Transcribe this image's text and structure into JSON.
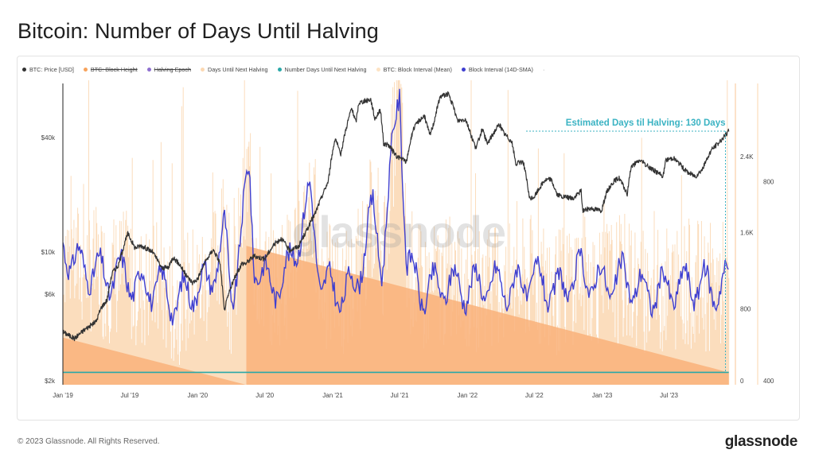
{
  "page": {
    "title": "Bitcoin: Number of Days Until Halving",
    "footer_copyright": "© 2023 Glassnode. All Rights Reserved.",
    "footer_brand": "glassnode",
    "watermark": "glassnode"
  },
  "legend": [
    {
      "label": "BTC: Price [USD]",
      "color": "#333333",
      "struck": false
    },
    {
      "label": "BTC: Block Height",
      "color": "#f7a35c",
      "struck": true
    },
    {
      "label": "Halving Epoch",
      "color": "#8e6fd0",
      "struck": true
    },
    {
      "label": "Days Until Next Halving",
      "color": "#fcd9b3",
      "struck": false
    },
    {
      "label": "Number Days Until Next Halving",
      "color": "#2aa8a8",
      "struck": false
    },
    {
      "label": "BTC: Block Interval (Mean)",
      "color": "#fde3c4",
      "struck": false
    },
    {
      "label": "Block Interval (14D-SMA)",
      "color": "#3f3fd0",
      "struck": false
    }
  ],
  "legend_more": "·",
  "chart_data": {
    "type": "line",
    "title": "Bitcoin: Number of Days Until Halving",
    "annotation": "Estimated Days til Halving: 130 Days",
    "x_ticks": [
      "Jan '19",
      "Jul '19",
      "Jan '20",
      "Jul '20",
      "Jan '21",
      "Jul '21",
      "Jan '22",
      "Jul '22",
      "Jan '23",
      "Jul '23"
    ],
    "x_range": [
      "2019-01-01",
      "2023-12-15"
    ],
    "halving_date": "2020-05-11",
    "y_axes": {
      "price": {
        "scale": "log",
        "ticks": [
          "$2k",
          "$6k",
          "$10k",
          "$40k"
        ],
        "tick_values": [
          2000,
          6000,
          10000,
          40000
        ],
        "range": [
          2000,
          80000
        ]
      },
      "days": {
        "scale": "linear",
        "ticks": [
          "0",
          "800",
          "1.6K",
          "2.4K"
        ],
        "tick_values": [
          0,
          800,
          1600,
          2400
        ],
        "range": [
          0,
          3200
        ]
      },
      "block_interval": {
        "scale": "linear",
        "ticks": [
          "400",
          "800"
        ],
        "tick_values": [
          400,
          800
        ],
        "range": [
          400,
          1000
        ]
      }
    },
    "series": [
      {
        "name": "BTC: Price [USD]",
        "color": "#333333",
        "points": [
          [
            "2019-01-01",
            3800
          ],
          [
            "2019-02-01",
            3500
          ],
          [
            "2019-03-01",
            3900
          ],
          [
            "2019-04-01",
            4300
          ],
          [
            "2019-04-15",
            5100
          ],
          [
            "2019-05-01",
            5600
          ],
          [
            "2019-05-15",
            7800
          ],
          [
            "2019-06-01",
            8500
          ],
          [
            "2019-06-26",
            12500
          ],
          [
            "2019-07-15",
            10500
          ],
          [
            "2019-08-01",
            10800
          ],
          [
            "2019-09-01",
            10000
          ],
          [
            "2019-09-26",
            8200
          ],
          [
            "2019-10-15",
            8300
          ],
          [
            "2019-10-26",
            9400
          ],
          [
            "2019-11-15",
            8500
          ],
          [
            "2019-12-01",
            7500
          ],
          [
            "2019-12-18",
            6900
          ],
          [
            "2020-01-01",
            7200
          ],
          [
            "2020-01-20",
            8700
          ],
          [
            "2020-02-12",
            10300
          ],
          [
            "2020-03-01",
            8800
          ],
          [
            "2020-03-13",
            4900
          ],
          [
            "2020-04-01",
            6600
          ],
          [
            "2020-04-30",
            8700
          ],
          [
            "2020-05-11",
            8700
          ],
          [
            "2020-06-01",
            9500
          ],
          [
            "2020-07-01",
            9200
          ],
          [
            "2020-07-27",
            11000
          ],
          [
            "2020-08-15",
            11800
          ],
          [
            "2020-09-05",
            10200
          ],
          [
            "2020-10-01",
            10700
          ],
          [
            "2020-10-21",
            12800
          ],
          [
            "2020-11-15",
            16000
          ],
          [
            "2020-12-01",
            19200
          ],
          [
            "2020-12-20",
            23500
          ],
          [
            "2021-01-08",
            40000
          ],
          [
            "2021-01-22",
            32000
          ],
          [
            "2021-02-08",
            46000
          ],
          [
            "2021-02-21",
            57000
          ],
          [
            "2021-03-05",
            48000
          ],
          [
            "2021-03-13",
            61000
          ],
          [
            "2021-04-14",
            63500
          ],
          [
            "2021-04-25",
            50000
          ],
          [
            "2021-05-10",
            56000
          ],
          [
            "2021-05-19",
            37000
          ],
          [
            "2021-06-01",
            36500
          ],
          [
            "2021-06-22",
            32000
          ],
          [
            "2021-07-20",
            29800
          ],
          [
            "2021-08-07",
            44000
          ],
          [
            "2021-08-22",
            49000
          ],
          [
            "2021-09-06",
            52000
          ],
          [
            "2021-09-21",
            41000
          ],
          [
            "2021-10-01",
            47000
          ],
          [
            "2021-10-20",
            66000
          ],
          [
            "2021-11-10",
            68000
          ],
          [
            "2021-11-25",
            57000
          ],
          [
            "2021-12-05",
            49000
          ],
          [
            "2021-12-27",
            50000
          ],
          [
            "2022-01-10",
            41500
          ],
          [
            "2022-01-24",
            35000
          ],
          [
            "2022-02-10",
            44000
          ],
          [
            "2022-02-24",
            37000
          ],
          [
            "2022-03-28",
            47000
          ],
          [
            "2022-04-10",
            42000
          ],
          [
            "2022-05-01",
            38000
          ],
          [
            "2022-05-12",
            29000
          ],
          [
            "2022-06-01",
            30000
          ],
          [
            "2022-06-18",
            19000
          ],
          [
            "2022-07-01",
            19500
          ],
          [
            "2022-07-29",
            23800
          ],
          [
            "2022-08-15",
            24200
          ],
          [
            "2022-09-01",
            20000
          ],
          [
            "2022-09-15",
            19500
          ],
          [
            "2022-10-15",
            19100
          ],
          [
            "2022-11-05",
            21000
          ],
          [
            "2022-11-09",
            16500
          ],
          [
            "2022-12-01",
            17000
          ],
          [
            "2022-12-30",
            16500
          ],
          [
            "2023-01-14",
            20800
          ],
          [
            "2023-02-01",
            23500
          ],
          [
            "2023-02-16",
            24500
          ],
          [
            "2023-03-10",
            20000
          ],
          [
            "2023-03-20",
            28000
          ],
          [
            "2023-04-14",
            30400
          ],
          [
            "2023-05-01",
            28500
          ],
          [
            "2023-06-15",
            25000
          ],
          [
            "2023-06-23",
            30500
          ],
          [
            "2023-07-13",
            31300
          ],
          [
            "2023-08-17",
            26500
          ],
          [
            "2023-09-11",
            25000
          ],
          [
            "2023-10-01",
            27500
          ],
          [
            "2023-10-24",
            34500
          ],
          [
            "2023-11-10",
            37000
          ],
          [
            "2023-12-05",
            42000
          ],
          [
            "2023-12-10",
            43500
          ]
        ]
      },
      {
        "name": "Days Until Next Halving",
        "color": "#fab276",
        "points": [
          [
            "2019-01-01",
            496
          ],
          [
            "2020-05-11",
            0
          ],
          [
            "2020-05-12",
            1460
          ],
          [
            "2023-12-10",
            130
          ]
        ]
      },
      {
        "name": "Number Days Until Next Halving",
        "color": "#2aa8a8",
        "points": [
          [
            "2019-01-01",
            130
          ],
          [
            "2023-12-10",
            130
          ]
        ]
      },
      {
        "name": "Block Interval (14D-SMA)",
        "color": "#3f3fd0",
        "points": [
          [
            "2019-01-01",
            680
          ],
          [
            "2019-02-01",
            640
          ],
          [
            "2019-03-15",
            630
          ],
          [
            "2019-05-01",
            610
          ],
          [
            "2019-06-15",
            620
          ],
          [
            "2019-08-01",
            590
          ],
          [
            "2019-09-15",
            600
          ],
          [
            "2019-11-01",
            560
          ],
          [
            "2019-12-15",
            590
          ],
          [
            "2020-02-01",
            600
          ],
          [
            "2020-03-15",
            700
          ],
          [
            "2020-04-01",
            560
          ],
          [
            "2020-05-20",
            820
          ],
          [
            "2020-06-01",
            650
          ],
          [
            "2020-07-15",
            590
          ],
          [
            "2020-09-01",
            620
          ],
          [
            "2020-11-01",
            770
          ],
          [
            "2020-12-01",
            600
          ],
          [
            "2021-01-15",
            580
          ],
          [
            "2021-03-01",
            590
          ],
          [
            "2021-04-20",
            740
          ],
          [
            "2021-05-15",
            640
          ],
          [
            "2021-06-10",
            840
          ],
          [
            "2021-07-01",
            990
          ],
          [
            "2021-07-20",
            640
          ],
          [
            "2021-09-01",
            580
          ],
          [
            "2021-11-01",
            600
          ],
          [
            "2022-01-01",
            590
          ],
          [
            "2022-03-01",
            600
          ],
          [
            "2022-05-01",
            590
          ],
          [
            "2022-07-01",
            610
          ],
          [
            "2022-09-01",
            580
          ],
          [
            "2022-11-01",
            620
          ],
          [
            "2023-01-01",
            600
          ],
          [
            "2023-03-01",
            610
          ],
          [
            "2023-05-01",
            580
          ],
          [
            "2023-07-01",
            590
          ],
          [
            "2023-09-01",
            600
          ],
          [
            "2023-11-01",
            590
          ],
          [
            "2023-12-10",
            600
          ]
        ]
      }
    ]
  }
}
